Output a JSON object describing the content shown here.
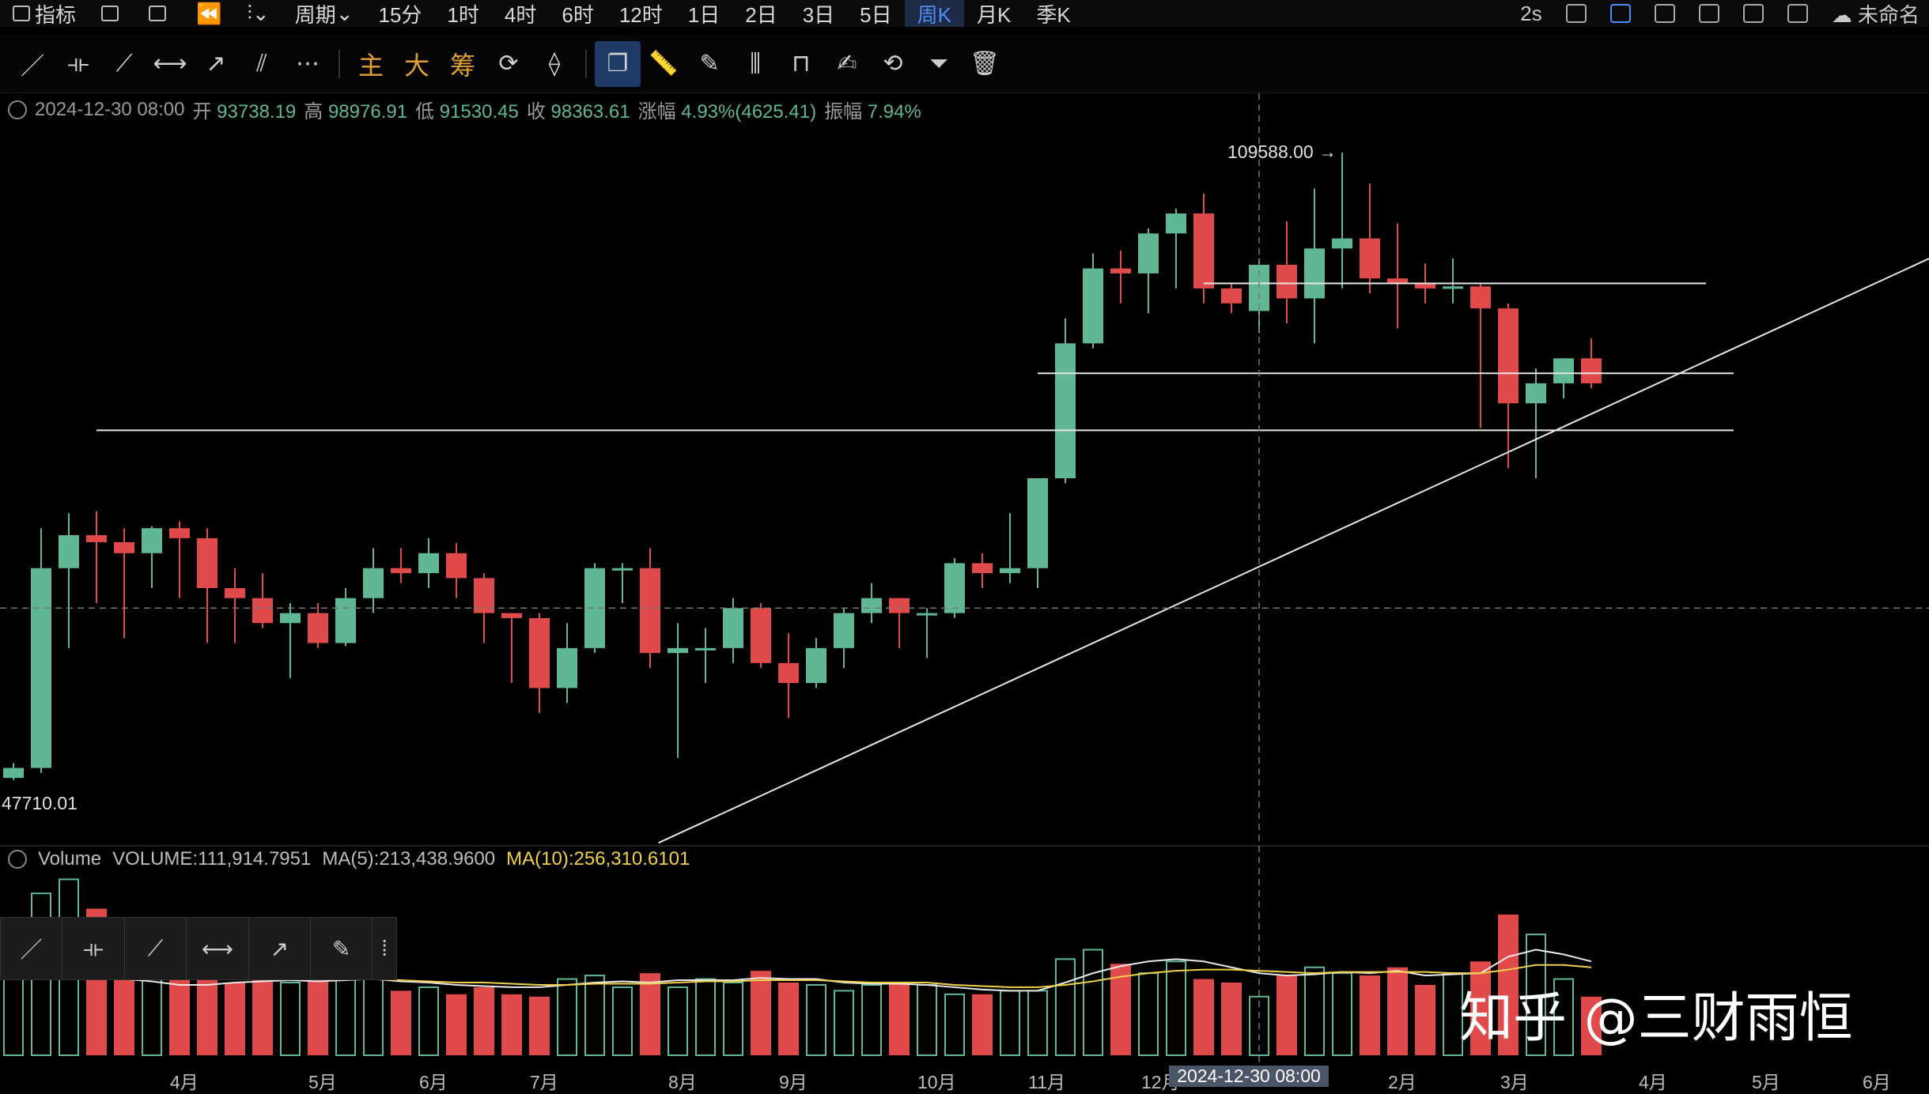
{
  "topbar": {
    "items": [
      "指标",
      "",
      "",
      "",
      "",
      "周期",
      "15分",
      "1时",
      "4时",
      "6时",
      "12时",
      "1日",
      "2日",
      "3日",
      "5日",
      "周K",
      "月K",
      "季K"
    ],
    "active": "周K",
    "right_text": "2s",
    "layout_name": "未命名"
  },
  "drawbar": {
    "text_tools": [
      "主",
      "大",
      "筹"
    ]
  },
  "info": {
    "date": "2024-12-30 08:00",
    "open_label": "开",
    "open": "93738.19",
    "high_label": "高",
    "high": "98976.91",
    "low_label": "低",
    "low": "91530.45",
    "close_label": "收",
    "close": "98363.61",
    "change_label": "涨幅",
    "change": "4.93%(4625.41)",
    "amp_label": "振幅",
    "amp": "7.94%"
  },
  "volume_info": {
    "name": "Volume",
    "vol": "VOLUME:111,914.7951",
    "ma5": "MA(5):213,438.9600",
    "ma10": "MA(10):256,310.6101"
  },
  "price_labels": {
    "max": "109588.00 →",
    "min": "47710.01"
  },
  "x_axis": [
    "4月",
    "5月",
    "6月",
    "7月",
    "8月",
    "9月",
    "10月",
    "11月",
    "12月",
    "2月",
    "3月",
    "4月",
    "5月",
    "6月"
  ],
  "crosshair_label": "2024-12-30 08:00",
  "watermark": "知乎 @三财雨恒",
  "colors": {
    "up": "#5fb893",
    "down": "#e04a4a",
    "ma10": "#f0d04a",
    "accent": "#4d8cff"
  },
  "chart_data": {
    "type": "candlestick",
    "candles": [
      {
        "o": 47000,
        "h": 48500,
        "l": 46800,
        "c": 48000
      },
      {
        "o": 48000,
        "h": 72000,
        "l": 47500,
        "c": 68000
      },
      {
        "o": 68000,
        "h": 73500,
        "l": 60000,
        "c": 71300
      },
      {
        "o": 71300,
        "h": 73700,
        "l": 64500,
        "c": 70600
      },
      {
        "o": 70600,
        "h": 72000,
        "l": 61000,
        "c": 69500
      },
      {
        "o": 69500,
        "h": 72200,
        "l": 66000,
        "c": 72000
      },
      {
        "o": 72000,
        "h": 72700,
        "l": 65000,
        "c": 71000
      },
      {
        "o": 71000,
        "h": 72000,
        "l": 60500,
        "c": 66000
      },
      {
        "o": 66000,
        "h": 68000,
        "l": 60500,
        "c": 65000
      },
      {
        "o": 65000,
        "h": 67500,
        "l": 62000,
        "c": 62500
      },
      {
        "o": 62500,
        "h": 64500,
        "l": 57000,
        "c": 63500
      },
      {
        "o": 63500,
        "h": 64500,
        "l": 60000,
        "c": 60500
      },
      {
        "o": 60500,
        "h": 66000,
        "l": 60200,
        "c": 65000
      },
      {
        "o": 65000,
        "h": 70000,
        "l": 63500,
        "c": 68000
      },
      {
        "o": 68000,
        "h": 70000,
        "l": 66500,
        "c": 67500
      },
      {
        "o": 67500,
        "h": 71000,
        "l": 66000,
        "c": 69500
      },
      {
        "o": 69500,
        "h": 70500,
        "l": 65000,
        "c": 67000
      },
      {
        "o": 67000,
        "h": 67500,
        "l": 60500,
        "c": 63500
      },
      {
        "o": 63500,
        "h": 63500,
        "l": 56500,
        "c": 63000
      },
      {
        "o": 63000,
        "h": 63500,
        "l": 53500,
        "c": 56000
      },
      {
        "o": 56000,
        "h": 62500,
        "l": 54500,
        "c": 60000
      },
      {
        "o": 60000,
        "h": 68500,
        "l": 59500,
        "c": 68000
      },
      {
        "o": 68000,
        "h": 68500,
        "l": 64500,
        "c": 68000
      },
      {
        "o": 68000,
        "h": 70000,
        "l": 58000,
        "c": 59500
      },
      {
        "o": 59500,
        "h": 62500,
        "l": 49000,
        "c": 60000
      },
      {
        "o": 60000,
        "h": 62000,
        "l": 56500,
        "c": 60000
      },
      {
        "o": 60000,
        "h": 65000,
        "l": 58500,
        "c": 64000
      },
      {
        "o": 64000,
        "h": 64500,
        "l": 58000,
        "c": 58500
      },
      {
        "o": 58500,
        "h": 61500,
        "l": 53000,
        "c": 56500
      },
      {
        "o": 56500,
        "h": 61000,
        "l": 56000,
        "c": 60000
      },
      {
        "o": 60000,
        "h": 64000,
        "l": 58000,
        "c": 63500
      },
      {
        "o": 63500,
        "h": 66500,
        "l": 62500,
        "c": 65000
      },
      {
        "o": 65000,
        "h": 65000,
        "l": 60000,
        "c": 63500
      },
      {
        "o": 63500,
        "h": 64000,
        "l": 59000,
        "c": 63500
      },
      {
        "o": 63500,
        "h": 69000,
        "l": 63000,
        "c": 68500
      },
      {
        "o": 68500,
        "h": 69500,
        "l": 66000,
        "c": 67500
      },
      {
        "o": 67500,
        "h": 73500,
        "l": 66500,
        "c": 68000
      },
      {
        "o": 68000,
        "h": 77000,
        "l": 66000,
        "c": 77000
      },
      {
        "o": 77000,
        "h": 93000,
        "l": 76500,
        "c": 90500
      },
      {
        "o": 90500,
        "h": 99500,
        "l": 90000,
        "c": 98000
      },
      {
        "o": 98000,
        "h": 99800,
        "l": 94500,
        "c": 97500
      },
      {
        "o": 97500,
        "h": 102000,
        "l": 93500,
        "c": 101500
      },
      {
        "o": 101500,
        "h": 104000,
        "l": 96000,
        "c": 103500
      },
      {
        "o": 103500,
        "h": 105500,
        "l": 94500,
        "c": 96000
      },
      {
        "o": 96000,
        "h": 96500,
        "l": 93500,
        "c": 94500
      },
      {
        "o": 93738,
        "h": 98977,
        "l": 91530,
        "c": 98364
      },
      {
        "o": 98364,
        "h": 102700,
        "l": 92500,
        "c": 95000
      },
      {
        "o": 95000,
        "h": 106000,
        "l": 90500,
        "c": 100000
      },
      {
        "o": 100000,
        "h": 109588,
        "l": 96000,
        "c": 101000
      },
      {
        "o": 101000,
        "h": 106500,
        "l": 95500,
        "c": 97000
      },
      {
        "o": 97000,
        "h": 102500,
        "l": 92000,
        "c": 96500
      },
      {
        "o": 96500,
        "h": 98500,
        "l": 94500,
        "c": 96000
      },
      {
        "o": 96000,
        "h": 99000,
        "l": 94500,
        "c": 96200
      },
      {
        "o": 96200,
        "h": 96500,
        "l": 82000,
        "c": 94000
      },
      {
        "o": 94000,
        "h": 94500,
        "l": 78000,
        "c": 84500
      },
      {
        "o": 84500,
        "h": 88000,
        "l": 77000,
        "c": 86500
      },
      {
        "o": 86500,
        "h": 89000,
        "l": 85000,
        "c": 89000
      },
      {
        "o": 89000,
        "h": 91000,
        "l": 86000,
        "c": 86500
      }
    ],
    "volumes": [
      105,
      138,
      150,
      125,
      90,
      95,
      80,
      82,
      62,
      65,
      62,
      68,
      65,
      70,
      55,
      58,
      52,
      58,
      52,
      50,
      65,
      68,
      58,
      70,
      58,
      65,
      62,
      72,
      62,
      60,
      55,
      60,
      62,
      60,
      52,
      52,
      55,
      55,
      82,
      90,
      78,
      70,
      80,
      65,
      62,
      50,
      68,
      75,
      70,
      68,
      75,
      60,
      70,
      80,
      120,
      103,
      65,
      50
    ],
    "ma5_tail": [
      85,
      78,
      74,
      70,
      65,
      63,
      60,
      60,
      62,
      63,
      64,
      63,
      64,
      65,
      63,
      62,
      60,
      59,
      58,
      58,
      60,
      62,
      63,
      62,
      64,
      64,
      64,
      66,
      65,
      65,
      62,
      61,
      61,
      60,
      58,
      56,
      55,
      55,
      62,
      70,
      76,
      80,
      82,
      80,
      75,
      70,
      68,
      69,
      71,
      70,
      72,
      68,
      69,
      70,
      84,
      90,
      86,
      80
    ],
    "ma10_tail": [
      95,
      90,
      88,
      82,
      78,
      75,
      72,
      70,
      68,
      67,
      66,
      66,
      65,
      65,
      64,
      63,
      62,
      62,
      61,
      60,
      60,
      61,
      61,
      61,
      62,
      63,
      63,
      64,
      64,
      64,
      63,
      62,
      62,
      62,
      60,
      59,
      58,
      58,
      60,
      63,
      67,
      70,
      72,
      73,
      73,
      72,
      71,
      70,
      71,
      71,
      71,
      71,
      70,
      70,
      73,
      77,
      77,
      75
    ],
    "levels": [
      {
        "value": 96500,
        "from": 43,
        "to": 60
      },
      {
        "value": 87500,
        "from": 37,
        "to": 61
      },
      {
        "value": 81800,
        "from": 3,
        "to": 61
      }
    ],
    "trendline": {
      "from": [
        23.3,
        40500
      ],
      "to": [
        70,
        100000
      ]
    },
    "crosshair": {
      "index": 45,
      "value": 64000
    },
    "ylim": [
      41000,
      113000
    ],
    "vlim": [
      0,
      155
    ]
  }
}
